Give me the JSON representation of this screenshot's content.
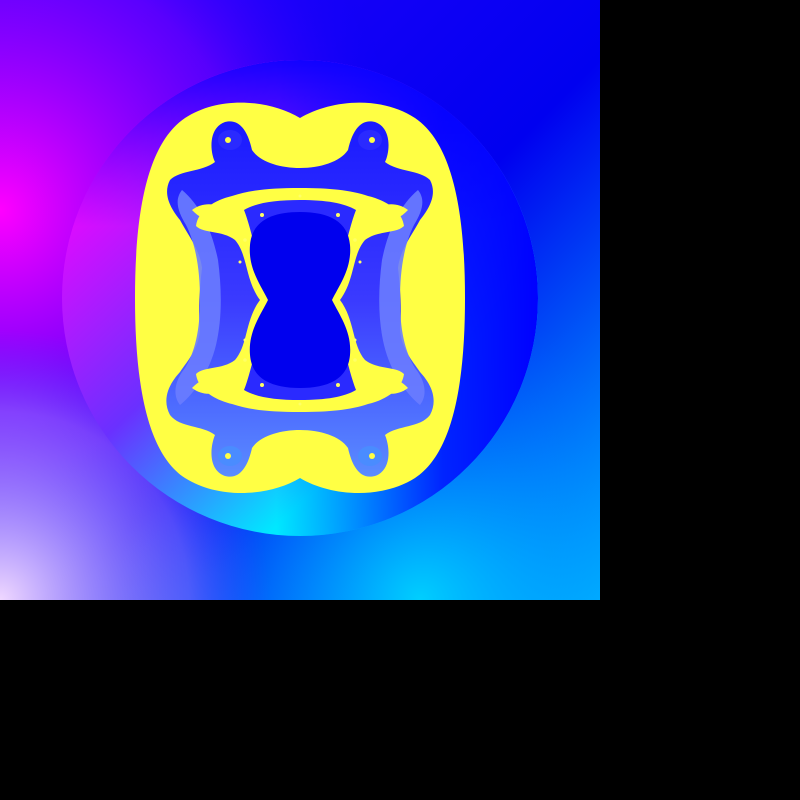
{
  "colors": {
    "background": "#000000",
    "deep_blue": "#0000f0",
    "violet": "#7a00ff",
    "magenta": "#ff00ff",
    "pale_lilac": "#e8c8ff",
    "cyan": "#00e8ff",
    "sky": "#00bfff",
    "yellow": "#ffff44",
    "interior": "#0000ee",
    "band_blue": "#3a3aff",
    "band_light": "#5a8cff"
  },
  "image": {
    "subject": "fractal-render",
    "symmetry": "horizontal-and-vertical"
  }
}
